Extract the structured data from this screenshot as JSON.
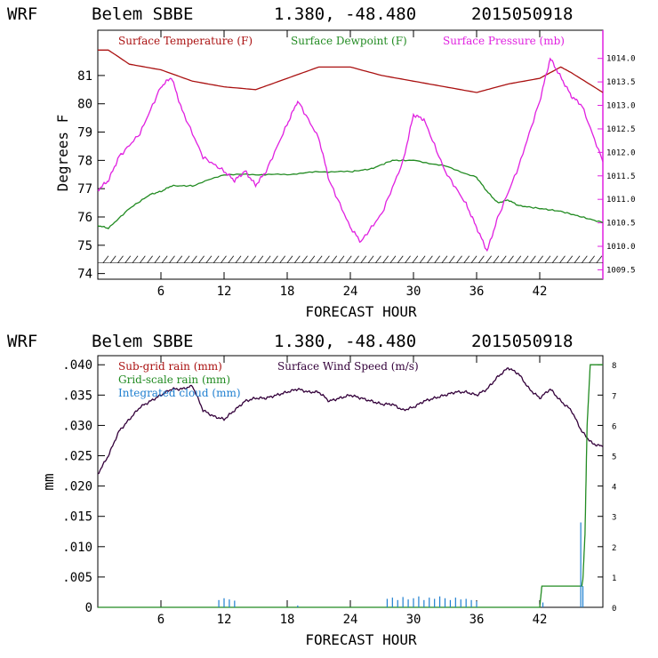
{
  "header": {
    "model": "WRF",
    "station": "Belem SBBE",
    "coords": "1.380, -48.480",
    "init_time": "2015050918"
  },
  "colors": {
    "temperature": "#aa1111",
    "dewpoint": "#228b22",
    "pressure": "#e020e0",
    "wind": "#33003a",
    "cloud": "#1e7fd0",
    "ticks": "#000000"
  },
  "chart_data": [
    {
      "type": "line",
      "xlabel": "FORECAST HOUR",
      "ylabel": "Degrees F",
      "xlim": [
        0,
        48
      ],
      "ylim": [
        73.8,
        82.6
      ],
      "xticks": [
        "6",
        "12",
        "18",
        "24",
        "30",
        "36",
        "42"
      ],
      "yticks": [
        "74",
        "75",
        "76",
        "77",
        "78",
        "79",
        "80",
        "81"
      ],
      "y2lim": [
        1009.3,
        1014.6
      ],
      "y2ticks": [
        "1009.5",
        "1010.0",
        "1010.5",
        "1011.0",
        "1011.5",
        "1012.0",
        "1012.5",
        "1013.0",
        "1013.5",
        "1014.0"
      ],
      "legend": [
        "Surface Temperature (F)",
        "Surface Dewpoint (F)",
        "Surface Pressure (mb)"
      ],
      "series": [
        {
          "name": "Surface Temperature (F)",
          "axis": "left",
          "x": [
            0,
            1,
            3,
            6,
            9,
            12,
            15,
            18,
            21,
            24,
            27,
            30,
            33,
            36,
            37,
            39,
            42,
            44,
            45,
            48
          ],
          "values": [
            81.9,
            81.9,
            81.4,
            81.2,
            80.8,
            80.6,
            80.5,
            80.9,
            81.3,
            81.3,
            81.0,
            80.8,
            80.6,
            80.4,
            80.5,
            80.7,
            80.9,
            81.3,
            81.1,
            80.4
          ]
        },
        {
          "name": "Surface Dewpoint (F)",
          "axis": "left",
          "x": [
            0,
            1,
            3,
            5,
            6,
            7,
            9,
            12,
            15,
            18,
            21,
            24,
            26,
            28,
            30,
            33,
            36,
            37,
            38,
            39,
            40,
            42,
            44,
            46,
            48
          ],
          "values": [
            75.7,
            75.6,
            76.3,
            76.8,
            76.9,
            77.1,
            77.1,
            77.5,
            77.5,
            77.5,
            77.6,
            77.6,
            77.7,
            78.0,
            78.0,
            77.8,
            77.4,
            76.9,
            76.5,
            76.6,
            76.4,
            76.3,
            76.2,
            76.0,
            75.8
          ]
        },
        {
          "name": "Surface Pressure (mb)",
          "axis": "right",
          "x": [
            0,
            1,
            2,
            4,
            6,
            7,
            8,
            10,
            12,
            13,
            14,
            15,
            16,
            18,
            19,
            21,
            22,
            24,
            25,
            27,
            29,
            30,
            31,
            33,
            35,
            36,
            37,
            38,
            40,
            42,
            43,
            44,
            45,
            46,
            48
          ],
          "values": [
            1011.2,
            1011.4,
            1011.9,
            1012.4,
            1013.4,
            1013.6,
            1012.9,
            1011.9,
            1011.6,
            1011.4,
            1011.6,
            1011.3,
            1011.6,
            1012.6,
            1013.1,
            1012.3,
            1011.4,
            1010.4,
            1010.1,
            1010.7,
            1011.8,
            1012.8,
            1012.7,
            1011.6,
            1010.9,
            1010.4,
            1009.9,
            1010.6,
            1011.7,
            1013.1,
            1014.0,
            1013.6,
            1013.2,
            1013.0,
            1011.8
          ]
        },
        {
          "name": "Wind barbs",
          "axis": "left",
          "marker": "barb",
          "y": 74.5
        }
      ]
    },
    {
      "type": "line",
      "xlabel": "FORECAST HOUR",
      "ylabel": "mm",
      "xlim": [
        0,
        48
      ],
      "ylim": [
        0,
        0.0415
      ],
      "xticks": [
        "6",
        "12",
        "18",
        "24",
        "30",
        "36",
        "42"
      ],
      "yticks": [
        "0",
        ".005",
        ".010",
        ".015",
        ".020",
        ".025",
        ".030",
        ".035",
        ".040"
      ],
      "y2lim": [
        0,
        8.3
      ],
      "y2ticks": [
        "0",
        "1",
        "2",
        "3",
        "4",
        "5",
        "6",
        "7",
        "8"
      ],
      "legend": [
        "Sub-grid rain (mm)",
        "Grid-scale rain (mm)",
        "Integrated cloud (mm)",
        "Surface Wind Speed (m/s)"
      ],
      "series": [
        {
          "name": "Surface Wind Speed (m/s)",
          "axis": "right",
          "x": [
            0,
            1,
            2,
            3,
            4,
            5,
            6,
            7,
            8,
            9,
            10,
            11,
            12,
            13,
            14,
            15,
            16,
            17,
            18,
            19,
            20,
            21,
            22,
            23,
            24,
            25,
            26,
            27,
            28,
            29,
            30,
            31,
            32,
            33,
            34,
            35,
            36,
            37,
            38,
            39,
            40,
            41,
            42,
            43,
            44,
            45,
            46,
            47,
            48
          ],
          "values": [
            4.4,
            5.0,
            5.8,
            6.2,
            6.6,
            6.8,
            7.0,
            7.2,
            7.2,
            7.3,
            6.5,
            6.3,
            6.2,
            6.5,
            6.8,
            6.9,
            6.9,
            7.0,
            7.1,
            7.2,
            7.1,
            7.1,
            6.8,
            6.9,
            7.0,
            6.9,
            6.8,
            6.7,
            6.7,
            6.5,
            6.6,
            6.8,
            6.9,
            7.0,
            7.1,
            7.1,
            7.0,
            7.2,
            7.6,
            7.9,
            7.7,
            7.2,
            6.9,
            7.2,
            6.8,
            6.5,
            5.8,
            5.4,
            5.3
          ]
        },
        {
          "name": "Grid-scale rain (mm)",
          "axis": "left",
          "x": [
            0,
            40,
            42,
            42.2,
            44,
            46,
            46.1,
            46.3,
            46.5,
            46.8,
            48
          ],
          "values": [
            0,
            0,
            0,
            0.0035,
            0.0035,
            0.0035,
            0.0046,
            0.012,
            0.03,
            0.04,
            0.04
          ]
        },
        {
          "name": "Integrated cloud (mm)",
          "axis": "left",
          "marker": "spikes",
          "x": [
            11.5,
            12,
            12.5,
            13,
            19,
            27.5,
            28,
            28.5,
            29,
            29.5,
            30,
            30.5,
            31,
            31.5,
            32,
            32.5,
            33,
            33.5,
            34,
            34.5,
            35,
            35.5,
            36,
            42.3,
            45.9,
            46.1
          ],
          "values": [
            0.0012,
            0.0015,
            0.0013,
            0.0011,
            0.0003,
            0.0014,
            0.0016,
            0.0012,
            0.0017,
            0.0013,
            0.0015,
            0.0018,
            0.0012,
            0.0016,
            0.0014,
            0.0018,
            0.0015,
            0.0012,
            0.0016,
            0.0013,
            0.0014,
            0.0012,
            0.001,
            0.0008,
            0.014,
            0.0035
          ]
        }
      ]
    }
  ]
}
